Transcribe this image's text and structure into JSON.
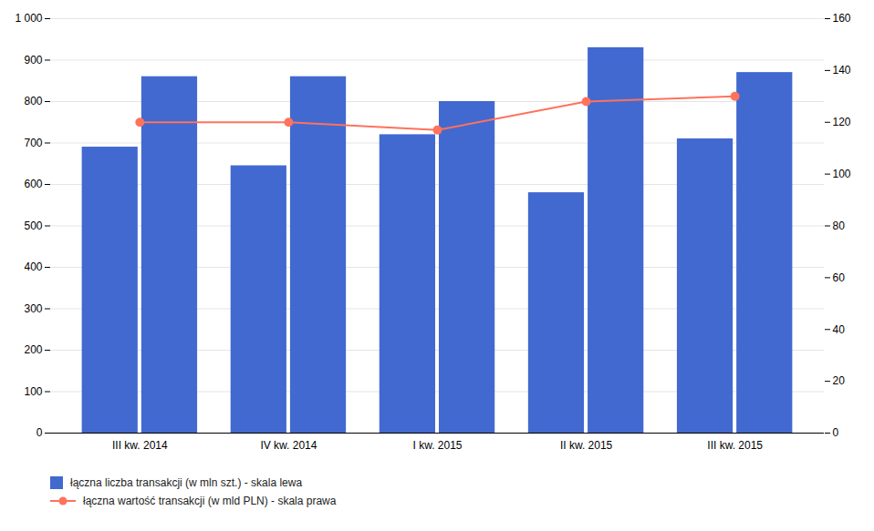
{
  "chart_data": {
    "type": "bar",
    "categories": [
      "III kw. 2014",
      "IV kw. 2014",
      "I kw. 2015",
      "II kw. 2015",
      "III kw. 2015"
    ],
    "series": [
      {
        "name": "łączna liczba transakcji (w mln szt.) - skala lewa",
        "type": "bar",
        "color": "#4269d0",
        "values": [
          690,
          645,
          720,
          580,
          710
        ]
      },
      {
        "type": "bar",
        "color": "#4269d0",
        "values": [
          860,
          860,
          800,
          930,
          870
        ]
      },
      {
        "name": "łączna wartość transakcji (w mld PLN) - skala prawa",
        "type": "line",
        "axis": "y2",
        "color": "#ff725c",
        "marker": "circle",
        "values": [
          120,
          120,
          117,
          128,
          130
        ]
      }
    ],
    "ylim": [
      0,
      1000
    ],
    "yticks": [
      0,
      100,
      200,
      300,
      400,
      500,
      600,
      700,
      800,
      900,
      {
        "value": 1000,
        "label": "1 000"
      }
    ],
    "y2lim": [
      0,
      160
    ],
    "y2ticks": [
      0,
      20,
      40,
      60,
      80,
      100,
      120,
      140,
      160
    ],
    "grid": true,
    "legend": "lower left"
  }
}
